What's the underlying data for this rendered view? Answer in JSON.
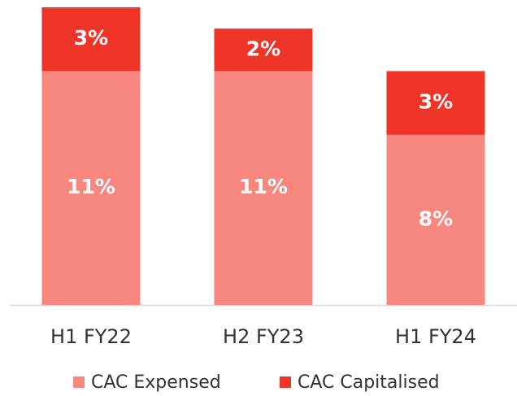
{
  "chart_data": {
    "type": "stacked_bar",
    "categories": [
      "H1 FY22",
      "H2 FY23",
      "H1 FY24"
    ],
    "series": [
      {
        "name": "CAC Expensed",
        "color": "#f7877f",
        "values": [
          11,
          11,
          8
        ],
        "value_labels": [
          "11%",
          "11%",
          "8%"
        ]
      },
      {
        "name": "CAC Capitalised",
        "color": "#ee3528",
        "values": [
          3,
          2,
          3
        ],
        "value_labels": [
          "3%",
          "2%",
          "3%"
        ]
      }
    ],
    "legend": "bottom"
  }
}
